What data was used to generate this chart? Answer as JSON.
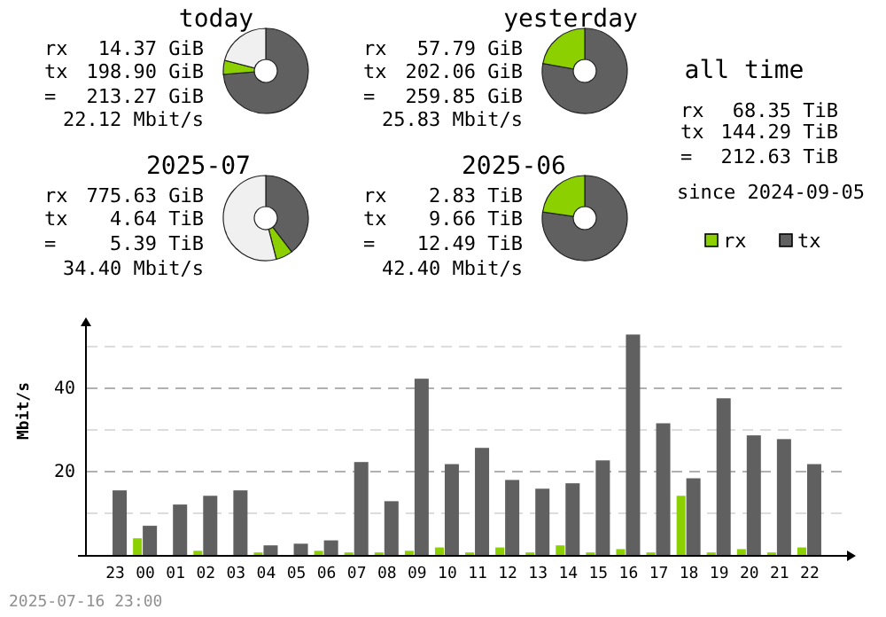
{
  "chart_data": [
    {
      "type": "donut",
      "title": "today",
      "categories": [
        null,
        null,
        null
      ],
      "values": [
        73.7,
        5.3,
        21.0
      ],
      "colors": [
        "#606060",
        "#8cd000",
        "#f0f0f0"
      ],
      "annotations": [
        "rx 14.37 GiB",
        "tx 198.90 GiB",
        "= 213.27 GiB",
        "22.12 Mbit/s"
      ]
    },
    {
      "type": "donut",
      "title": "yesterday",
      "categories": [
        null,
        null
      ],
      "values": [
        77.8,
        22.2
      ],
      "colors": [
        "#606060",
        "#8cd000"
      ],
      "annotations": [
        "rx 57.79 GiB",
        "tx 202.06 GiB",
        "= 259.85 GiB",
        "25.83 Mbit/s"
      ]
    },
    {
      "type": "donut",
      "title": "2025-07",
      "categories": [
        null,
        null,
        null
      ],
      "values": [
        39.6,
        6.4,
        54.0
      ],
      "colors": [
        "#606060",
        "#8cd000",
        "#f0f0f0"
      ],
      "annotations": [
        "rx 775.63 GiB",
        "tx 4.64 TiB",
        "= 5.39 TiB",
        "34.40 Mbit/s"
      ]
    },
    {
      "type": "donut",
      "title": "2025-06",
      "categories": [
        null,
        null
      ],
      "values": [
        77.3,
        22.7
      ],
      "colors": [
        "#606060",
        "#8cd000"
      ],
      "annotations": [
        "rx 2.83 TiB",
        "tx 9.66 TiB",
        "= 12.49 TiB",
        "42.40 Mbit/s"
      ]
    },
    {
      "type": "other",
      "title": "all time",
      "annotations": [
        "rx 68.35 TiB",
        "tx 144.29 TiB",
        "= 212.63 TiB",
        "since 2024-09-05"
      ]
    },
    {
      "type": "bar",
      "categories": [
        "23",
        "00",
        "01",
        "02",
        "03",
        "04",
        "05",
        "06",
        "07",
        "08",
        "09",
        "10",
        "11",
        "12",
        "13",
        "14",
        "15",
        "16",
        "17",
        "18",
        "19",
        "20",
        "21",
        "22"
      ],
      "series": [
        {
          "name": "rx",
          "color": "#8cd000",
          "values": [
            0,
            4.0,
            0,
            1.0,
            0,
            0.6,
            0,
            1.0,
            0.6,
            0.6,
            1.0,
            1.8,
            0.6,
            1.8,
            0.6,
            2.3,
            0.6,
            1.4,
            0.6,
            14.2,
            0.6,
            1.4,
            0.6,
            1.8
          ]
        },
        {
          "name": "tx",
          "color": "#606060",
          "values": [
            15.5,
            7.0,
            12.1,
            14.2,
            15.5,
            2.3,
            2.7,
            3.5,
            22.3,
            12.9,
            42.3,
            21.8,
            25.7,
            18.0,
            15.9,
            17.2,
            22.7,
            52.9,
            31.6,
            18.4,
            37.6,
            28.7,
            27.8,
            21.8
          ]
        }
      ],
      "ylabel": "Mbit/s",
      "ylim": [
        0,
        55
      ],
      "yticks": [
        {
          "value": 10,
          "label": null
        },
        20,
        {
          "value": 30,
          "label": null
        },
        40,
        {
          "value": 50,
          "label": null
        }
      ],
      "grid": "y",
      "legend": "top right",
      "annotations": [
        "2025-07-16 23:00"
      ]
    }
  ]
}
